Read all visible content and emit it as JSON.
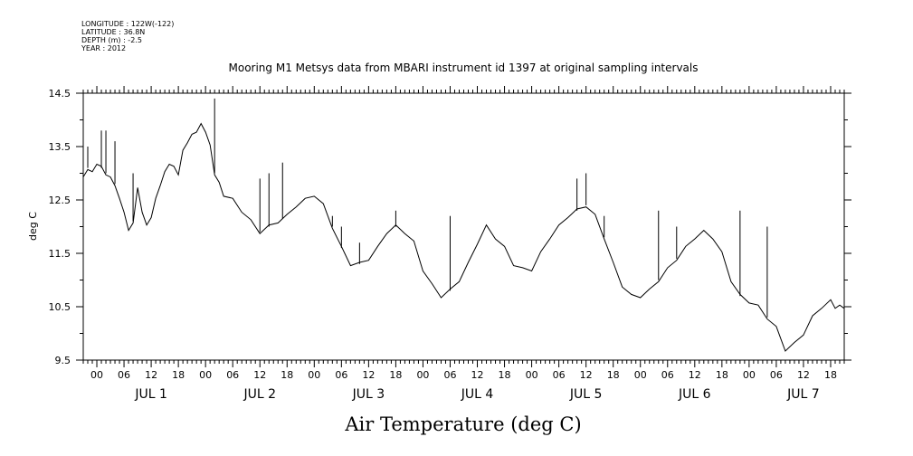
{
  "header": {
    "longitude": "LONGITUDE : 122W(-122)",
    "latitude": "LATITUDE : 36.8N",
    "depth": "DEPTH (m) : -2.5",
    "year": "YEAR : 2012"
  },
  "chart_data": {
    "type": "line",
    "title": "Mooring M1 Metsys data from MBARI instrument id 1397 at original sampling intervals",
    "xlabel": "Air Temperature (deg C)",
    "ylabel": "deg C",
    "ylim": [
      9.5,
      14.5
    ],
    "xlim_hours": [
      -3,
      165
    ],
    "yticks": [
      "9.5",
      "10.5",
      "11.5",
      "12.5",
      "13.5",
      "14.5"
    ],
    "xtick_labels": [
      "00",
      "06",
      "12",
      "18"
    ],
    "day_labels": [
      "JUL 1",
      "JUL 2",
      "JUL 3",
      "JUL 4",
      "JUL 5",
      "JUL 6",
      "JUL 7"
    ],
    "grid": false,
    "series": [
      {
        "x_hours": [
          -3,
          -2,
          -1,
          0,
          1,
          2,
          3,
          4,
          5,
          6,
          7,
          8,
          9,
          10,
          11,
          12,
          13,
          14,
          15,
          16,
          17,
          18,
          19,
          20,
          21,
          22,
          23,
          24,
          25,
          26,
          27,
          28,
          30,
          32,
          34,
          36,
          38,
          40,
          42,
          44,
          46,
          48,
          50,
          52,
          54,
          56,
          58,
          60,
          62,
          64,
          66,
          68,
          70,
          72,
          74,
          76,
          78,
          80,
          82,
          84,
          86,
          88,
          90,
          92,
          94,
          96,
          98,
          100,
          102,
          104,
          106,
          108,
          110,
          112,
          114,
          116,
          118,
          120,
          122,
          124,
          126,
          128,
          130,
          132,
          134,
          136,
          138,
          140,
          142,
          144,
          146,
          148,
          150,
          152,
          154,
          156,
          158,
          160,
          162,
          163,
          164,
          165
        ],
        "y": [
          12.9,
          13.1,
          13.0,
          13.2,
          13.1,
          13.0,
          12.9,
          12.8,
          12.5,
          12.3,
          11.9,
          12.1,
          12.7,
          12.3,
          12.0,
          12.2,
          12.5,
          12.8,
          13.0,
          13.2,
          13.1,
          13.0,
          13.4,
          13.6,
          13.7,
          13.8,
          13.9,
          13.8,
          13.5,
          13.0,
          12.8,
          12.6,
          12.5,
          12.3,
          12.1,
          11.9,
          12.0,
          12.1,
          12.2,
          12.4,
          12.5,
          12.6,
          12.4,
          12.0,
          11.6,
          11.3,
          11.3,
          11.4,
          11.6,
          11.9,
          12.0,
          11.9,
          11.7,
          11.2,
          10.9,
          10.7,
          10.8,
          11.0,
          11.3,
          11.7,
          12.0,
          11.8,
          11.6,
          11.3,
          11.2,
          11.2,
          11.5,
          11.8,
          12.0,
          12.2,
          12.3,
          12.4,
          12.2,
          11.8,
          11.3,
          10.9,
          10.7,
          10.7,
          10.8,
          11.0,
          11.2,
          11.4,
          11.6,
          11.8,
          11.9,
          11.8,
          11.5,
          11.0,
          10.7,
          10.6,
          10.5,
          10.3,
          10.1,
          9.7,
          9.8,
          10.0,
          10.3,
          10.5,
          10.6,
          10.5,
          10.5,
          10.5
        ],
        "spikes": [
          [
            -2,
            13.5
          ],
          [
            1,
            13.8
          ],
          [
            2,
            13.8
          ],
          [
            4,
            13.6
          ],
          [
            8,
            13.0
          ],
          [
            26,
            14.4
          ],
          [
            36,
            12.9
          ],
          [
            38,
            13.0
          ],
          [
            41,
            13.2
          ],
          [
            52,
            12.2
          ],
          [
            54,
            12.0
          ],
          [
            58,
            11.7
          ],
          [
            66,
            12.3
          ],
          [
            78,
            12.2
          ],
          [
            106,
            12.9
          ],
          [
            108,
            13.0
          ],
          [
            112,
            12.2
          ],
          [
            124,
            12.3
          ],
          [
            128,
            12.0
          ],
          [
            142,
            12.3
          ],
          [
            148,
            12.0
          ]
        ]
      }
    ]
  }
}
